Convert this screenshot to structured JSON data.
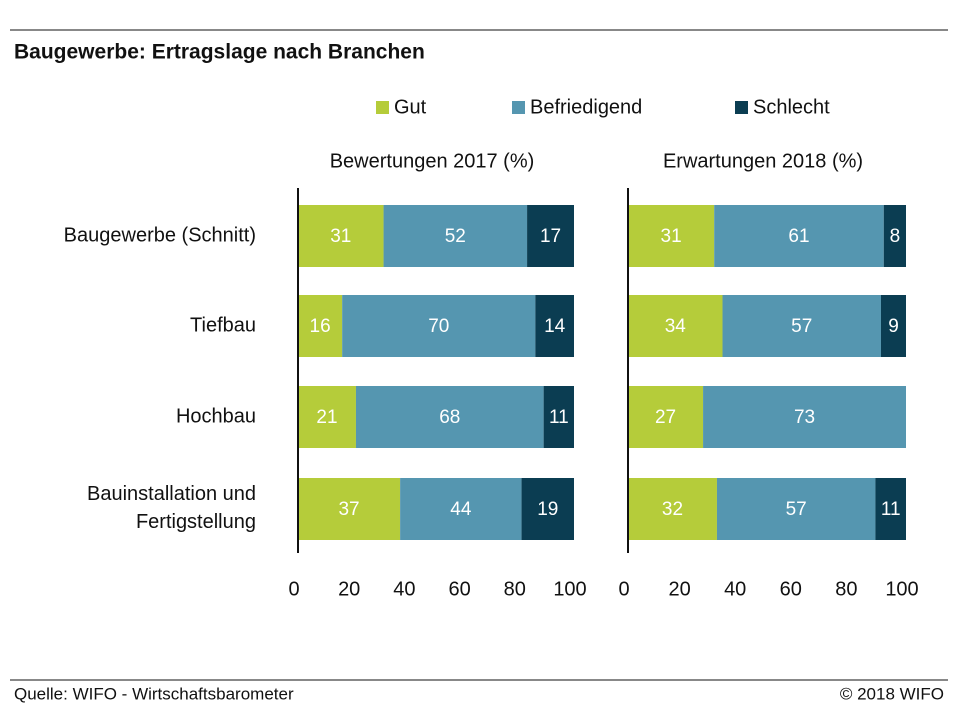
{
  "header": {
    "title": "Baugewerbe: Ertragslage nach Branchen"
  },
  "chart_data": [
    {
      "type": "bar",
      "orientation": "horizontal",
      "stacked": true,
      "title": "Bewertungen 2017 (%)",
      "categories": [
        "Baugewerbe (Schnitt)",
        "Tiefbau",
        "Hochbau",
        "Bauinstallation und\nFertigstellung"
      ],
      "series": [
        {
          "name": "Gut",
          "color": "#b5cc3a",
          "values": [
            31,
            16,
            21,
            37
          ]
        },
        {
          "name": "Befriedigend",
          "color": "#5596b0",
          "values": [
            52,
            70,
            68,
            44
          ]
        },
        {
          "name": "Schlecht",
          "color": "#0b3d52",
          "values": [
            17,
            14,
            11,
            19
          ]
        }
      ],
      "xlim": [
        0,
        100
      ],
      "xticks": [
        0,
        20,
        40,
        60,
        80,
        100
      ]
    },
    {
      "type": "bar",
      "orientation": "horizontal",
      "stacked": true,
      "title": "Erwartungen 2018 (%)",
      "series": [
        {
          "color": "#b5cc3a",
          "values": [
            31,
            34,
            27,
            32
          ]
        },
        {
          "color": "#5596b0",
          "values": [
            61,
            57,
            73,
            57
          ]
        },
        {
          "color": "#0b3d52",
          "values": [
            8,
            9,
            0,
            11
          ]
        }
      ],
      "xlim": [
        0,
        100
      ],
      "xticks": [
        0,
        20,
        40,
        60,
        80,
        100
      ]
    }
  ],
  "footer": {
    "source": "Quelle: WIFO - Wirtschaftsbarometer",
    "copyright": "© 2018 WIFO"
  }
}
